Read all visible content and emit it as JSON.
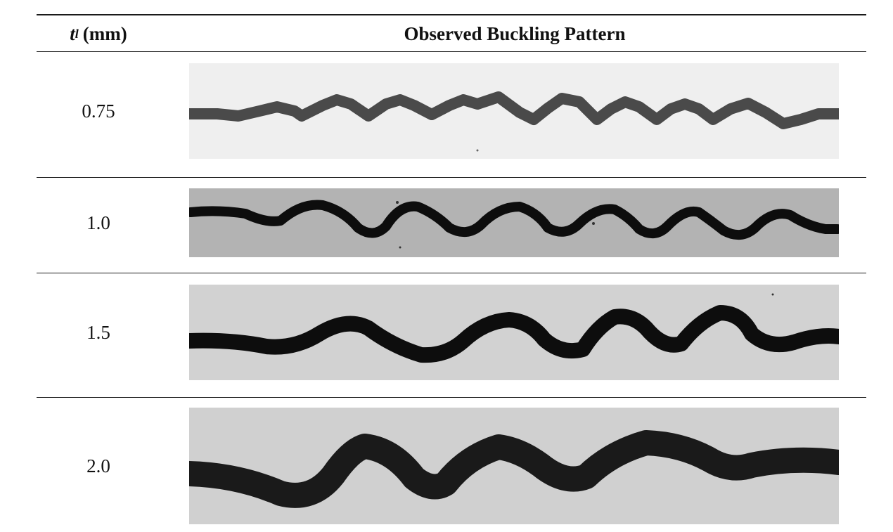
{
  "table": {
    "header": {
      "param_symbol": "t",
      "param_subscript": "l",
      "param_unit": "(mm)",
      "pattern_label": "Observed Buckling Pattern"
    },
    "rows": [
      {
        "thickness": "0.75",
        "image": "buckling-pattern-image",
        "background": "#efefef",
        "stroke": "#4a4a4a"
      },
      {
        "thickness": "1.0",
        "image": "buckling-pattern-image",
        "background": "#b3b3b3",
        "stroke": "#0d0d0d"
      },
      {
        "thickness": "1.5",
        "image": "buckling-pattern-image",
        "background": "#d2d2d2",
        "stroke": "#0d0d0d"
      },
      {
        "thickness": "2.0",
        "image": "buckling-pattern-image",
        "background": "#d0d0d0",
        "stroke": "#1a1a1a"
      }
    ]
  }
}
